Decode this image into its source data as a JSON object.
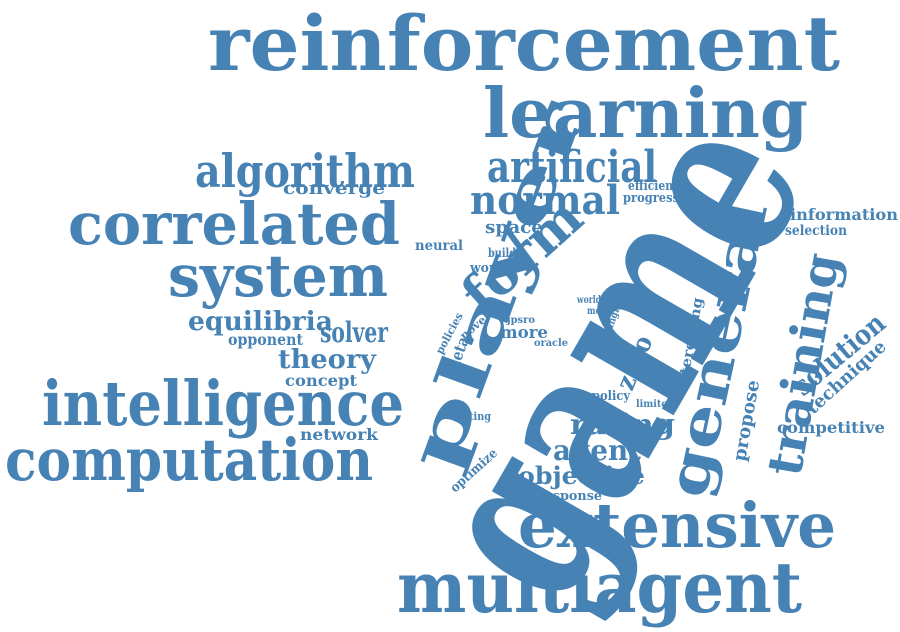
{
  "word_cloud": {
    "color": "#4682b4",
    "words": [
      "reinforcement",
      "learning",
      "game",
      "player",
      "algorithm",
      "artificial",
      "normal",
      "form",
      "correlated",
      "system",
      "general",
      "training",
      "intelligence",
      "computation",
      "extensive",
      "multiagent",
      "equilibria",
      "solver",
      "theory",
      "converge",
      "space",
      "neural",
      "build",
      "work",
      "efficient",
      "progress",
      "information",
      "selection",
      "opponent",
      "concept",
      "network",
      "zero",
      "interesting",
      "propose",
      "solution",
      "technique",
      "competitive",
      "rating",
      "agent",
      "objective",
      "response",
      "optimize",
      "setting",
      "meta",
      "policies",
      "novel",
      "jpsro",
      "world",
      "most",
      "single",
      "oracle",
      "more",
      "policy",
      "limited"
    ]
  }
}
